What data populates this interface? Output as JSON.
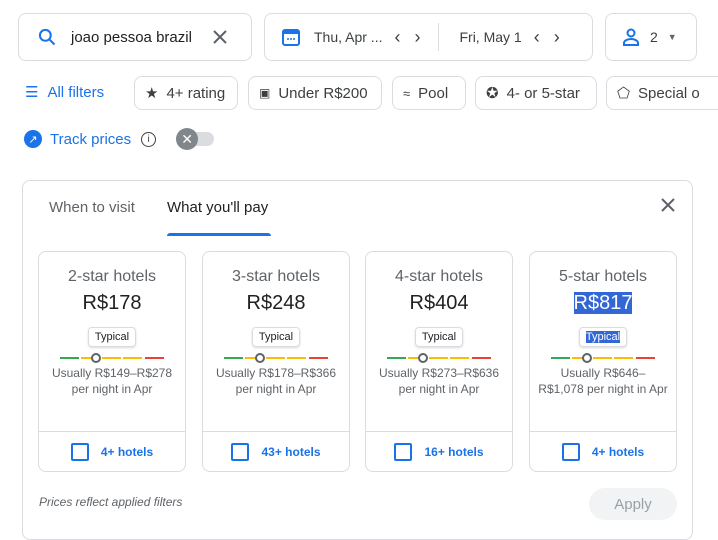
{
  "search": {
    "value": "joao pessoa brazil"
  },
  "dates": {
    "checkin": "Thu, Apr ...",
    "checkout": "Fri, May 1"
  },
  "guests": {
    "count": "2"
  },
  "filters": {
    "all": "All filters",
    "chips": [
      "4+ rating",
      "Under R$200",
      "Pool",
      "4- or 5-star",
      "Special o"
    ]
  },
  "track": {
    "label": "Track prices",
    "enabled": false
  },
  "panel": {
    "tabs": [
      "When to visit",
      "What you'll pay"
    ],
    "active_tab": "What you'll pay",
    "cards": [
      {
        "title": "2-star hotels",
        "price": "R$178",
        "badge": "Typical",
        "range": "Usually R$149–R$278 per night in Apr",
        "hotels": "4+ hotels"
      },
      {
        "title": "3-star hotels",
        "price": "R$248",
        "badge": "Typical",
        "range": "Usually R$178–R$366 per night in Apr",
        "hotels": "43+ hotels"
      },
      {
        "title": "4-star hotels",
        "price": "R$404",
        "badge": "Typical",
        "range": "Usually R$273–R$636 per night in Apr",
        "hotels": "16+ hotels"
      },
      {
        "title": "5-star hotels",
        "price": "R$817",
        "badge": "Typical",
        "range": "Usually R$646–R$1,078 per night in Apr",
        "hotels": "4+ hotels"
      }
    ],
    "note": "Prices reflect applied filters",
    "apply": "Apply"
  },
  "colors": {
    "accent": "#1a73e8",
    "low": "#34a853",
    "typical": "#fbbc04",
    "high": "#ea4335"
  }
}
